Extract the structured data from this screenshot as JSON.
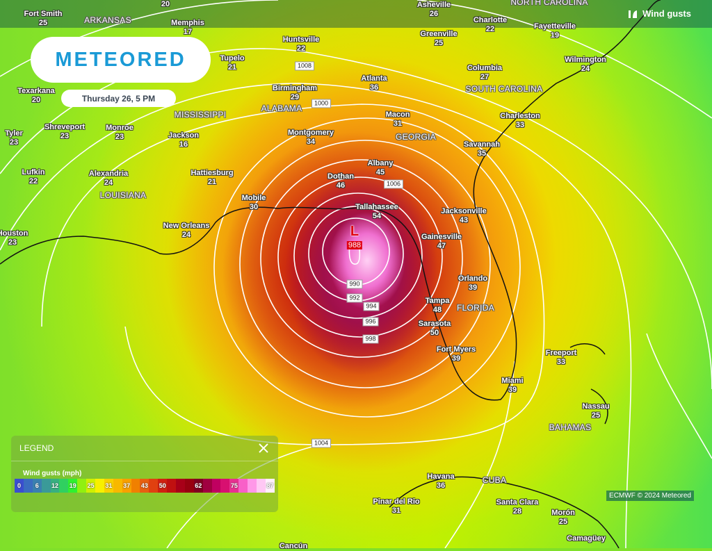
{
  "header": {
    "layer_label": "Wind gusts",
    "layer_icon": "wind-gust-icon",
    "logo": "METEORED",
    "date": "Thursday 26, 5 PM"
  },
  "low": {
    "symbol": "L",
    "pressure": "988"
  },
  "cities": [
    {
      "name": "Fort Smith",
      "value": "25"
    },
    {
      "name": "",
      "value": "20"
    },
    {
      "name": "Memphis",
      "value": "17"
    },
    {
      "name": "Huntsville",
      "value": "22"
    },
    {
      "name": "Tupelo",
      "value": "21"
    },
    {
      "name": "Texarkana",
      "value": "20"
    },
    {
      "name": "Birmingham",
      "value": "29"
    },
    {
      "name": "Atlanta",
      "value": "36"
    },
    {
      "name": "Asheville",
      "value": "26"
    },
    {
      "name": "Charlotte",
      "value": "22"
    },
    {
      "name": "Fayetteville",
      "value": "19"
    },
    {
      "name": "Greenville",
      "value": "25"
    },
    {
      "name": "Columbia",
      "value": "27"
    },
    {
      "name": "Wilmington",
      "value": "24"
    },
    {
      "name": "Charleston",
      "value": "33"
    },
    {
      "name": "Macon",
      "value": "31"
    },
    {
      "name": "Montgomery",
      "value": "34"
    },
    {
      "name": "Savannah",
      "value": "35"
    },
    {
      "name": "Tyler",
      "value": "23"
    },
    {
      "name": "Shreveport",
      "value": "23"
    },
    {
      "name": "Monroe",
      "value": "23"
    },
    {
      "name": "Jackson",
      "value": "16"
    },
    {
      "name": "Lufkin",
      "value": "22"
    },
    {
      "name": "Alexandria",
      "value": "24"
    },
    {
      "name": "Hattiesburg",
      "value": "21"
    },
    {
      "name": "Dothan",
      "value": "46"
    },
    {
      "name": "Albany",
      "value": "45"
    },
    {
      "name": "Mobile",
      "value": "30"
    },
    {
      "name": "Tallahassee",
      "value": "54"
    },
    {
      "name": "Jacksonville",
      "value": "43"
    },
    {
      "name": "New Orleans",
      "value": "24"
    },
    {
      "name": "Houston",
      "value": "23"
    },
    {
      "name": "Gainesville",
      "value": "47"
    },
    {
      "name": "Orlando",
      "value": "39"
    },
    {
      "name": "Tampa",
      "value": "48"
    },
    {
      "name": "Sarasota",
      "value": "50"
    },
    {
      "name": "Fort Myers",
      "value": "39"
    },
    {
      "name": "Freeport",
      "value": "33"
    },
    {
      "name": "Miami",
      "value": "39"
    },
    {
      "name": "Nassau",
      "value": "25"
    },
    {
      "name": "Havana",
      "value": "36"
    },
    {
      "name": "Pinar del Rio",
      "value": "31"
    },
    {
      "name": "Santa Clara",
      "value": "28"
    },
    {
      "name": "Morón",
      "value": "25"
    },
    {
      "name": "Camagüey",
      "value": ""
    },
    {
      "name": "Cancún",
      "value": ""
    }
  ],
  "regions": [
    "ARKANSAS",
    "MISSISSIPPI",
    "ALABAMA",
    "GEORGIA",
    "SOUTH CAROLINA",
    "NORTH CAROLINA",
    "LOUISIANA",
    "FLORIDA",
    "BAHAMAS",
    "CUBA"
  ],
  "isobars": [
    "1008",
    "1006",
    "1000",
    "990",
    "992",
    "994",
    "996",
    "998",
    "1004"
  ],
  "legend": {
    "title": "LEGEND",
    "subtitle": "Wind gusts (mph)",
    "stops": [
      {
        "label": "0",
        "color": "#3a4ed0"
      },
      {
        "label": "",
        "color": "#3a6cc0"
      },
      {
        "label": "6",
        "color": "#3a80b0"
      },
      {
        "label": "",
        "color": "#3a9a98"
      },
      {
        "label": "12",
        "color": "#38b080"
      },
      {
        "label": "",
        "color": "#30d060"
      },
      {
        "label": "19",
        "color": "#30f030"
      },
      {
        "label": "",
        "color": "#90f010"
      },
      {
        "label": "25",
        "color": "#d0f000"
      },
      {
        "label": "",
        "color": "#f8f000"
      },
      {
        "label": "31",
        "color": "#f8d000"
      },
      {
        "label": "",
        "color": "#f8b800"
      },
      {
        "label": "37",
        "color": "#f8a000"
      },
      {
        "label": "",
        "color": "#f08000"
      },
      {
        "label": "43",
        "color": "#e86010"
      },
      {
        "label": "",
        "color": "#e04010"
      },
      {
        "label": "50",
        "color": "#d02010"
      },
      {
        "label": "",
        "color": "#c01010"
      },
      {
        "label": "",
        "color": "#a80018"
      },
      {
        "label": "",
        "color": "#980010"
      },
      {
        "label": "62",
        "color": "#800020"
      },
      {
        "label": "",
        "color": "#a00040"
      },
      {
        "label": "",
        "color": "#c00060"
      },
      {
        "label": "",
        "color": "#d81070"
      },
      {
        "label": "75",
        "color": "#e83090"
      },
      {
        "label": "",
        "color": "#f860c8"
      },
      {
        "label": "",
        "color": "#ff98e8"
      },
      {
        "label": "",
        "color": "#ffc8f4"
      },
      {
        "label": "87",
        "color": "#fff0fc"
      }
    ]
  },
  "credit": "ECMWF © 2024 Meteored"
}
